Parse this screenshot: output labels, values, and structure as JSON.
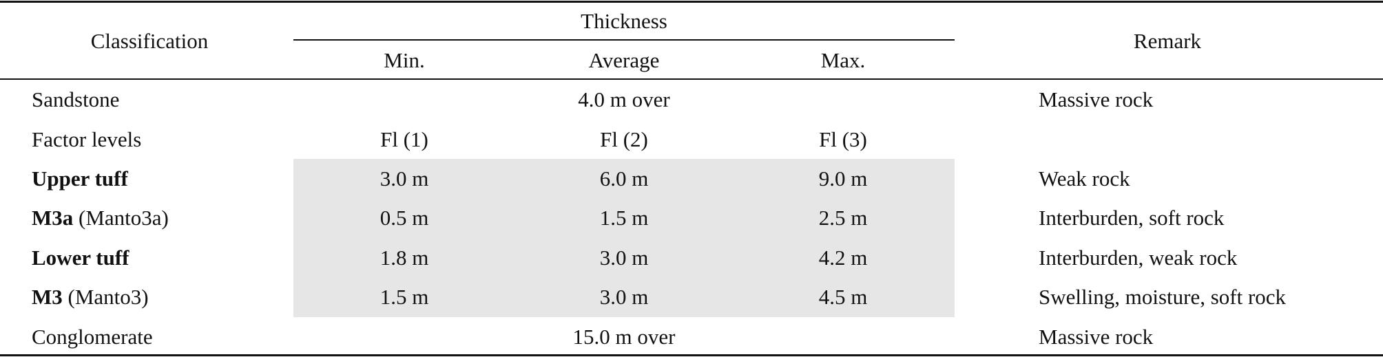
{
  "table": {
    "header": {
      "classification": "Classification",
      "thickness": "Thickness",
      "min": "Min.",
      "average": "Average",
      "max": "Max.",
      "remark": "Remark"
    },
    "rows": {
      "sandstone": {
        "label": "Sandstone",
        "span": "4.0 m over",
        "remark": "Massive rock"
      },
      "factor_levels": {
        "label": "Factor levels",
        "min": "Fl (1)",
        "avg": "Fl (2)",
        "max": "Fl (3)",
        "remark": ""
      },
      "upper_tuff": {
        "label_bold": "Upper tuff",
        "label_rest": "",
        "min": "3.0 m",
        "avg": "6.0 m",
        "max": "9.0 m",
        "remark": "Weak rock"
      },
      "m3a": {
        "label_bold": "M3a",
        "label_rest": " (Manto3a)",
        "min": "0.5 m",
        "avg": "1.5 m",
        "max": "2.5 m",
        "remark": "Interburden, soft rock"
      },
      "lower_tuff": {
        "label_bold": "Lower tuff",
        "label_rest": "",
        "min": "1.8 m",
        "avg": "3.0 m",
        "max": "4.2 m",
        "remark": "Interburden, weak rock"
      },
      "m3": {
        "label_bold": "M3",
        "label_rest": " (Manto3)",
        "min": "1.5 m",
        "avg": "3.0 m",
        "max": "4.5 m",
        "remark": "Swelling, moisture, soft rock"
      },
      "conglomerate": {
        "label": "Conglomerate",
        "span": "15.0 m over",
        "remark": "Massive rock"
      }
    }
  }
}
